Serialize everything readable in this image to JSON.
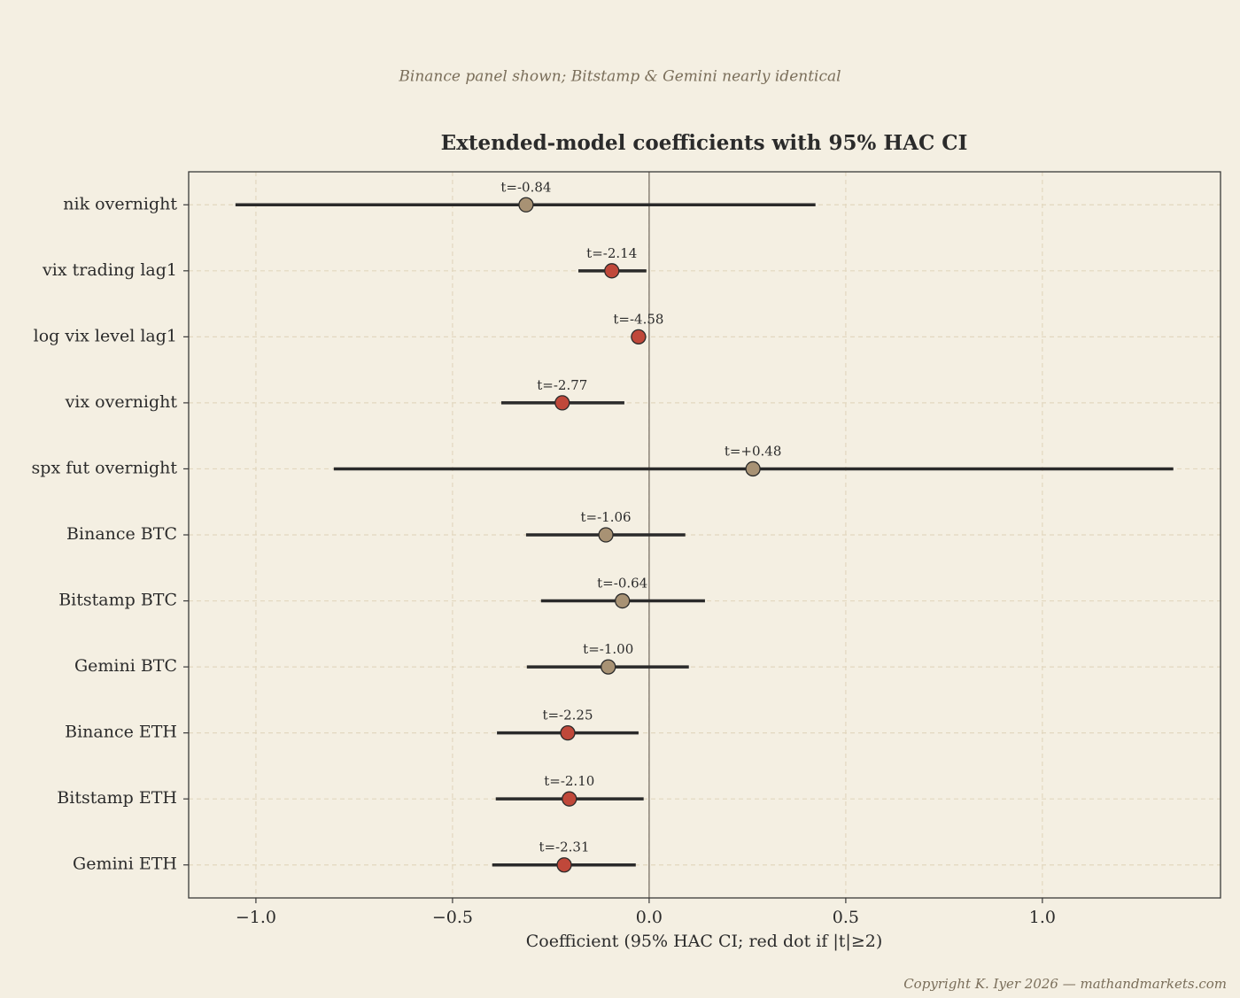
{
  "chart_data": {
    "type": "coefficient",
    "subtitle": "Binance panel shown; Bitstamp & Gemini nearly identical",
    "title": "Extended-model coefficients with 95% HAC CI",
    "x_label": "Coefficient (95% HAC CI; red dot if |t|≥2)",
    "copyright": "Copyright K. Iyer 2026 — mathandmarkets.com",
    "categories": [
      "nik overnight",
      "vix trading lag1",
      "log vix level lag1",
      "vix overnight",
      "spx fut overnight",
      "Binance BTC",
      "Bitstamp BTC",
      "Gemini BTC",
      "Binance ETH",
      "Bitstamp ETH",
      "Gemini ETH"
    ],
    "values": [
      -0.313,
      -0.095,
      -0.027,
      -0.221,
      0.264,
      -0.11,
      -0.068,
      -0.104,
      -0.207,
      -0.203,
      -0.216
    ],
    "lower": [
      -1.052,
      -0.18,
      -0.039,
      -0.376,
      -0.802,
      -0.313,
      -0.275,
      -0.311,
      -0.387,
      -0.39,
      -0.399
    ],
    "upper": [
      0.423,
      -0.007,
      -0.015,
      -0.063,
      1.333,
      0.092,
      0.142,
      0.101,
      -0.027,
      -0.014,
      -0.034
    ],
    "t_labels": [
      "t=-0.84",
      "t=-2.14",
      "t=-4.58",
      "t=-2.77",
      "t=+0.48",
      "t=-1.06",
      "t=-0.64",
      "t=-1.00",
      "t=-2.25",
      "t=-2.10",
      "t=-2.31"
    ],
    "colors": [
      "#a89274",
      "#c0483a",
      "#c0483a",
      "#c0483a",
      "#a89274",
      "#a89274",
      "#a89274",
      "#a89274",
      "#c0483a",
      "#c0483a",
      "#c0483a"
    ],
    "xlim": [
      -1.171,
      1.453
    ],
    "xticks": [
      {
        "value": -1,
        "label": "−1.0"
      },
      {
        "value": -0.5,
        "label": "−0.5"
      },
      {
        "value": 0,
        "label": "0.0"
      },
      {
        "value": 0.5,
        "label": "0.5"
      },
      {
        "value": 1,
        "label": "1.0"
      }
    ],
    "reference_line": 0,
    "grid": true
  }
}
